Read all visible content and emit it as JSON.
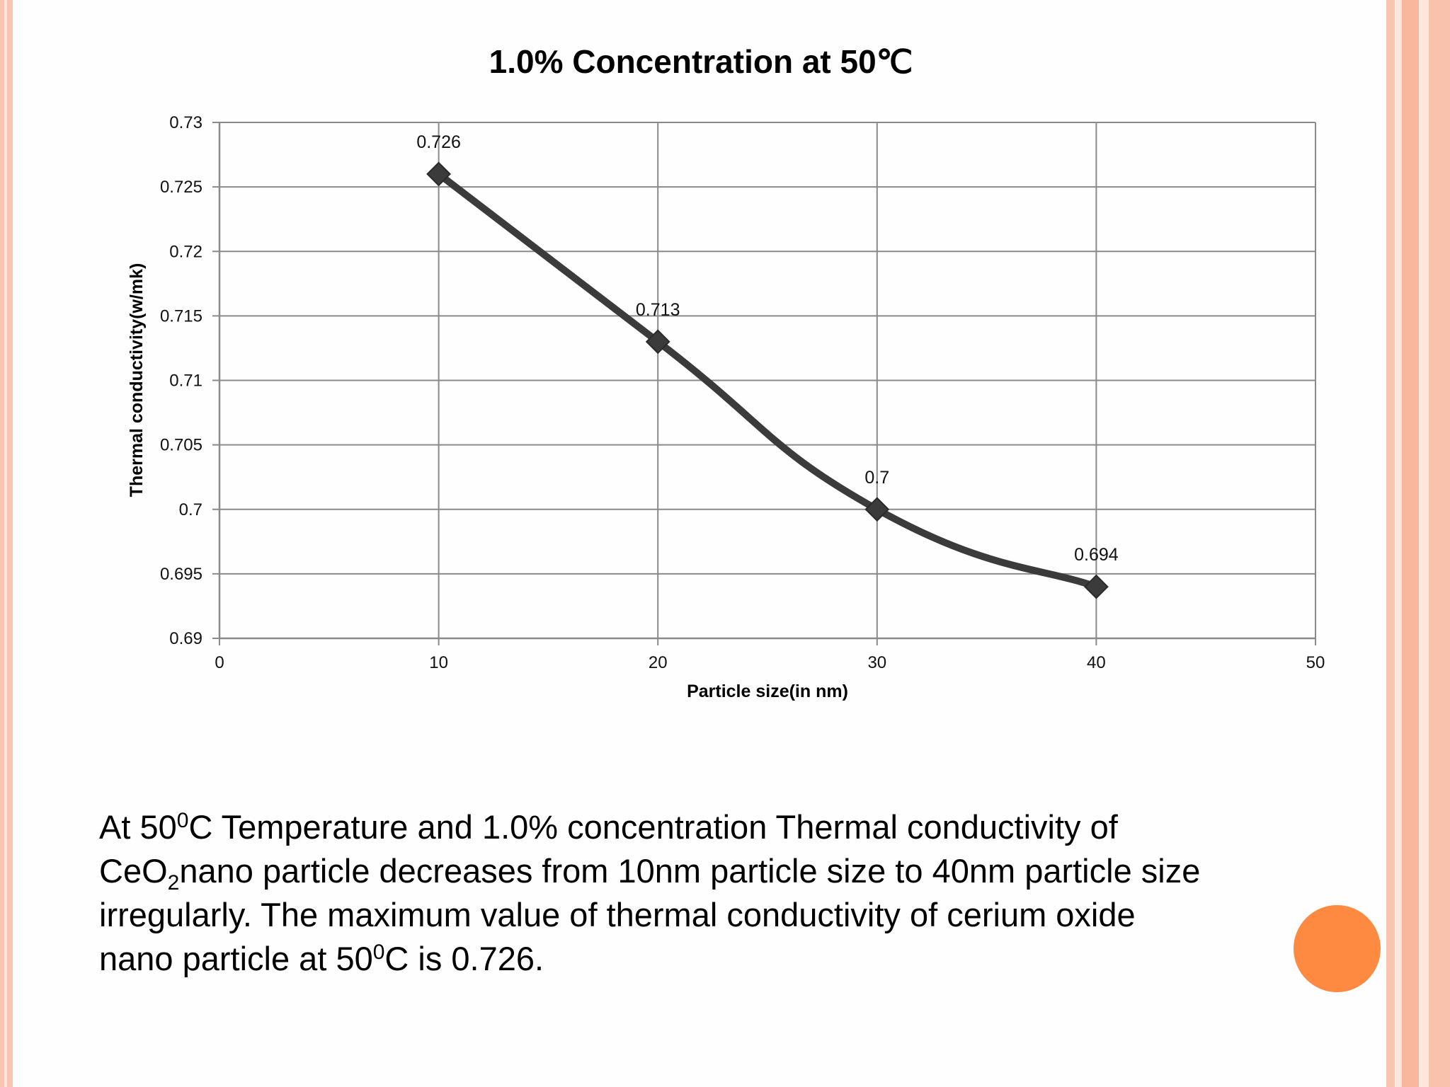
{
  "chart_data": {
    "type": "line",
    "title": "1.0% Concentration at 50℃",
    "xlabel": "Particle size(in nm)",
    "ylabel": "Thermal conductivity(w/mk)",
    "xlim": [
      0,
      50
    ],
    "ylim": [
      0.69,
      0.73
    ],
    "xticks": [
      "0",
      "10",
      "20",
      "30",
      "40",
      "50"
    ],
    "yticks": [
      "0.69",
      "0.695",
      "0.7",
      "0.705",
      "0.71",
      "0.715",
      "0.72",
      "0.725",
      "0.73"
    ],
    "grid": true,
    "smooth": true,
    "marker": "diamond",
    "line_color": "#3a3b3a",
    "series": [
      {
        "x": [
          10,
          20,
          30,
          40
        ],
        "values": [
          0.726,
          0.713,
          0.7,
          0.694
        ],
        "labels": [
          "0.726",
          "0.713",
          "0.7",
          "0.694"
        ]
      }
    ]
  },
  "caption": {
    "line1_a": "At 50",
    "line1_sup": "0",
    "line1_b": "C Temperature and 1.0% concentration Thermal conductivity of",
    "line2_a": "CeO",
    "line2_sub": "2",
    "line2_b": "nano particle decreases from 10nm particle size to 40nm particle size",
    "line3": "irregularly. The maximum value of thermal conductivity of cerium oxide",
    "line4_a": "nano particle at 50",
    "line4_sup": "0",
    "line4_b": "C is 0.726."
  },
  "theme": {
    "accent_dot": "#fe8a42",
    "border_color": "#f9c4b0"
  }
}
